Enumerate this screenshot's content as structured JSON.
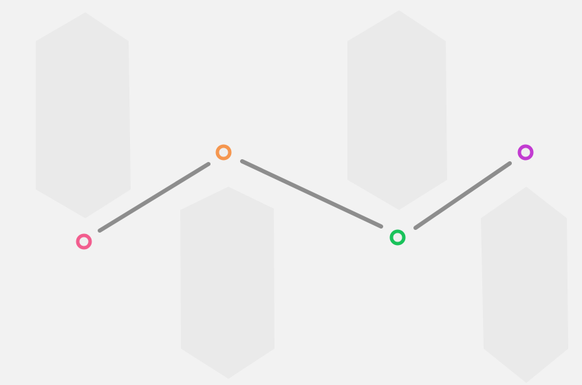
{
  "diagram": {
    "background_color": "#f2f2f2",
    "panel_color": "#eaeaea",
    "connector_color": "#8d8d8d",
    "nodes": [
      {
        "id": "step-1",
        "ring_color": "#f25d8e"
      },
      {
        "id": "step-2",
        "ring_color": "#f5964f"
      },
      {
        "id": "step-3",
        "ring_color": "#19c25a"
      },
      {
        "id": "step-4",
        "ring_color": "#c23bd1"
      }
    ]
  }
}
